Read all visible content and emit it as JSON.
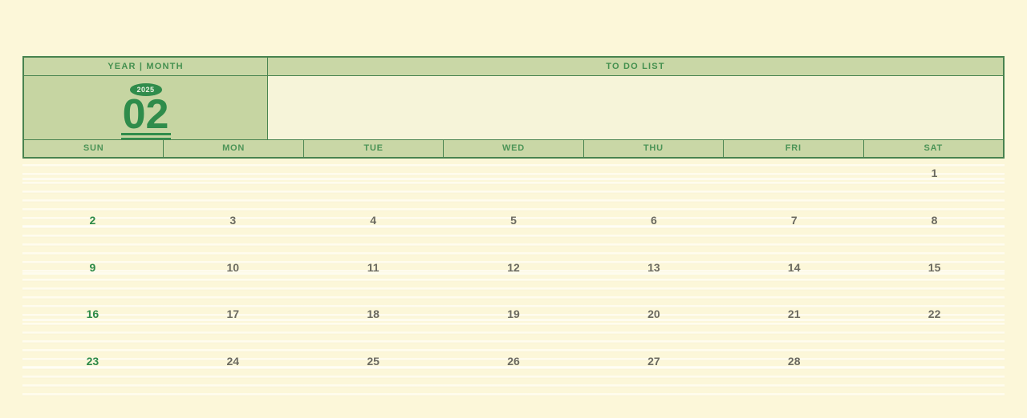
{
  "header": {
    "year_month_label": "YEAR | MONTH",
    "todo_label": "TO DO LIST"
  },
  "month_display": {
    "year": "2025",
    "month": "02"
  },
  "calendar": {
    "day_headers": [
      "SUN",
      "MON",
      "TUE",
      "WED",
      "THU",
      "FRI",
      "SAT"
    ],
    "weeks": [
      [
        "",
        "",
        "",
        "",
        "",
        "",
        "1"
      ],
      [
        "2",
        "3",
        "4",
        "5",
        "6",
        "7",
        "8"
      ],
      [
        "9",
        "10",
        "11",
        "12",
        "13",
        "14",
        "15"
      ],
      [
        "16",
        "17",
        "18",
        "19",
        "20",
        "21",
        "22"
      ],
      [
        "23",
        "24",
        "25",
        "26",
        "27",
        "28",
        ""
      ]
    ],
    "sunday_column_index": 0
  },
  "todo": {
    "items": []
  },
  "colors": {
    "page_background": "#fcf7d9",
    "panel_green": "#c9d7a6",
    "month_cell_green": "#c6d5a2",
    "todo_background": "#f6f4d9",
    "border_green": "#48834f",
    "accent_green": "#2f8c4b",
    "header_text_green": "#44904f",
    "date_gray": "#6b6a60",
    "sunday_green": "#2d8a48",
    "ruled_line": "#fffdf0"
  }
}
